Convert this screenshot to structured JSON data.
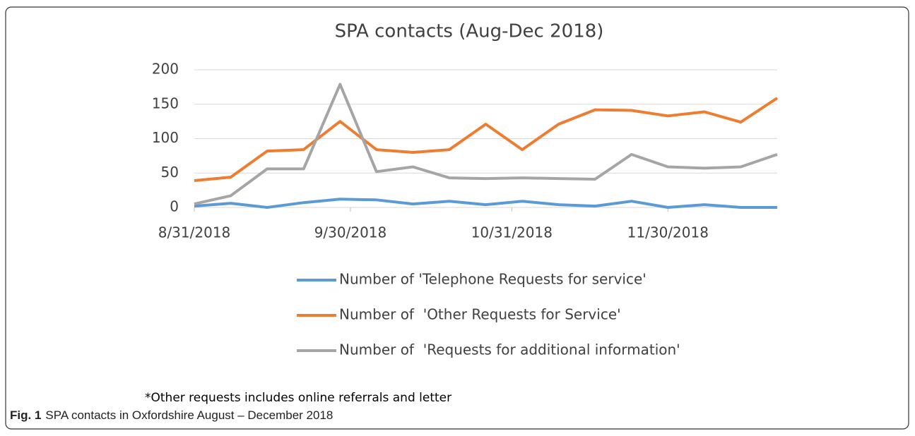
{
  "chart_data": {
    "type": "line",
    "title": "SPA contacts (Aug-Dec 2018)",
    "x": [
      "8/31/2018",
      "9/7/2018",
      "9/14/2018",
      "9/21/2018",
      "9/28/2018",
      "10/5/2018",
      "10/12/2018",
      "10/19/2018",
      "10/26/2018",
      "11/2/2018",
      "11/9/2018",
      "11/16/2018",
      "11/23/2018",
      "11/30/2018",
      "12/7/2018",
      "12/14/2018",
      "12/21/2018"
    ],
    "series": [
      {
        "name": "Number of 'Telephone Requests for service'",
        "color": "#5b9bd5",
        "values": [
          2,
          6,
          0,
          7,
          12,
          11,
          5,
          9,
          4,
          9,
          4,
          2,
          9,
          0,
          4,
          0,
          0
        ]
      },
      {
        "name": "Number of  'Other Requests for Service'",
        "color": "#ed7d31",
        "values": [
          39,
          44,
          82,
          84,
          125,
          84,
          80,
          84,
          121,
          84,
          121,
          142,
          141,
          133,
          139,
          124,
          159
        ]
      },
      {
        "name": "Number of  'Requests for additional information'",
        "color": "#a5a5a5",
        "values": [
          5,
          17,
          56,
          56,
          179,
          52,
          59,
          43,
          42,
          43,
          42,
          41,
          77,
          59,
          57,
          59,
          77
        ]
      }
    ],
    "xlim": [
      "8/31/2018",
      "12/21/2018"
    ],
    "xticks": [
      "8/31/2018",
      "9/30/2018",
      "10/31/2018",
      "11/30/2018"
    ],
    "ylim": [
      0,
      200
    ],
    "yticks": [
      0,
      50,
      100,
      150,
      200
    ],
    "grid": true,
    "note": "*Other requests includes online referrals and letter"
  },
  "caption_label": "Fig. 1",
  "caption": "SPA contacts in Oxfordshire August – December 2018"
}
